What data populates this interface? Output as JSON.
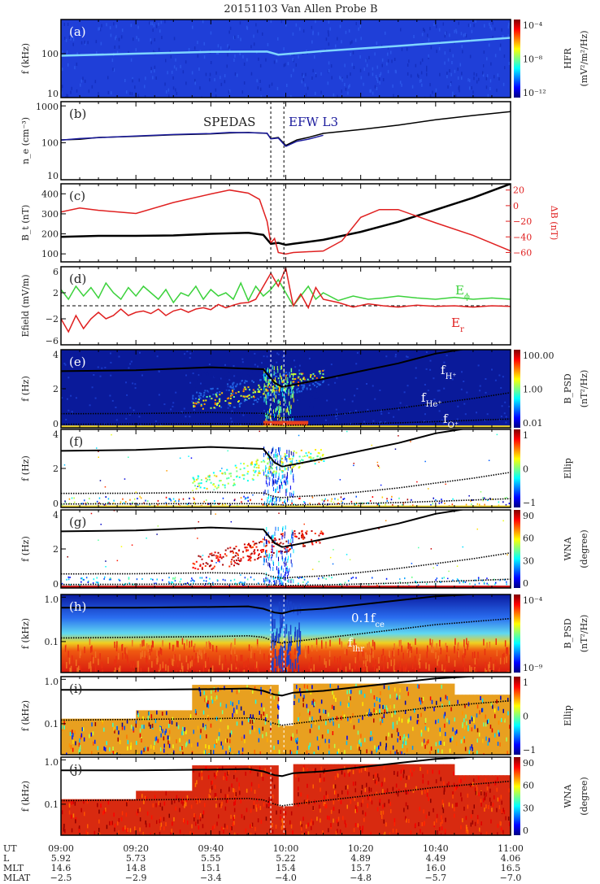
{
  "title": "20151103   Van Allen Probe B",
  "colors": {
    "black": "#000000",
    "blue": "#1a1a9c",
    "red": "#e02020",
    "green": "#3cd23c"
  },
  "chart_data": {
    "type": "multi-panel",
    "x_range_min_from_0900": [
      0,
      120
    ],
    "dashed_times_min": [
      56,
      59.5
    ],
    "x_axis": {
      "rows": [
        {
          "label": "UT",
          "values": [
            "09:00",
            "09:20",
            "09:40",
            "10:00",
            "10:20",
            "10:40",
            "11:00"
          ]
        },
        {
          "label": "L",
          "values": [
            "5.92",
            "5.73",
            "5.55",
            "5.22",
            "4.89",
            "4.49",
            "4.06"
          ]
        },
        {
          "label": "MLT",
          "values": [
            "14.6",
            "14.8",
            "15.1",
            "15.4",
            "15.7",
            "16.0",
            "16.5"
          ]
        },
        {
          "label": "MLAT",
          "values": [
            "−2.5",
            "−2.9",
            "−3.4",
            "−4.0",
            "−4.8",
            "−5.7",
            "−7.0"
          ]
        }
      ]
    },
    "panels": [
      {
        "id": "a",
        "letter": "(a)",
        "type": "spectrogram",
        "ylabel": "f (kHz)",
        "yscale": "log",
        "ylim": [
          10,
          600
        ],
        "yticks": [
          "10",
          "100"
        ],
        "ytick_values": [
          10,
          100
        ],
        "colorbar": {
          "label": "HFR",
          "unit": "(mV²/m²/Hz)",
          "ticks": [
            "10⁻⁴",
            "10⁻⁸",
            "10⁻¹²"
          ],
          "scale": "jet"
        },
        "lines": [
          {
            "name": "upper-hybrid",
            "color": "#7fd6ff",
            "t": [
              0,
              20,
              40,
              55,
              58,
              60,
              70,
              90,
              120
            ],
            "v": [
              90,
              100,
              110,
              112,
              95,
              98,
              115,
              150,
              230
            ]
          }
        ]
      },
      {
        "id": "b",
        "letter": "(b)",
        "type": "line",
        "ylabel": "n_e (cm⁻³)",
        "yscale": "log",
        "ylim": [
          10,
          1300
        ],
        "yticks": [
          "10",
          "100",
          "1000"
        ],
        "ytick_values": [
          10,
          100,
          1000
        ],
        "annotations": [
          {
            "text": "SPEDAS",
            "color": "#222222"
          },
          {
            "text": "EFW  L3",
            "color": "#1a1a9c"
          }
        ],
        "series": [
          {
            "name": "SPEDAS",
            "color": "#000000",
            "t": [
              0,
              5,
              10,
              20,
              30,
              40,
              45,
              50,
              55,
              56,
              58,
              60,
              63,
              66,
              70,
              80,
              90,
              100,
              110,
              120
            ],
            "v": [
              120,
              125,
              140,
              150,
              165,
              175,
              185,
              190,
              180,
              130,
              140,
              85,
              120,
              140,
              180,
              230,
              300,
              420,
              550,
              700
            ]
          },
          {
            "name": "EFW L3",
            "color": "#1a1a9c",
            "t": [
              0,
              5,
              10,
              20,
              30,
              40,
              45,
              50,
              55,
              56,
              58,
              60,
              63,
              66,
              70
            ],
            "v": [
              118,
              130,
              138,
              152,
              168,
              178,
              190,
              188,
              182,
              128,
              135,
              80,
              110,
              125,
              160
            ]
          }
        ]
      },
      {
        "id": "c",
        "letter": "(c)",
        "type": "line",
        "ylabel": "B_t (nT)",
        "yscale": "linear",
        "ylim": [
          60,
          450
        ],
        "yticks": [
          "100",
          "200",
          "300",
          "400"
        ],
        "ytick_values": [
          100,
          200,
          300,
          400
        ],
        "right_axis": {
          "label": "ΔB (nT)",
          "ylim": [
            -72,
            28
          ],
          "yticks": [
            "20",
            "0",
            "−20",
            "−40",
            "−60"
          ],
          "ytick_values": [
            20,
            0,
            -20,
            -40,
            -60
          ],
          "color": "#e02020"
        },
        "series": [
          {
            "name": "Bt",
            "color": "#000000",
            "axis": "left",
            "t": [
              0,
              10,
              20,
              30,
              40,
              50,
              54,
              56,
              58,
              60,
              62,
              70,
              80,
              90,
              100,
              110,
              120
            ],
            "v": [
              185,
              190,
              190,
              192,
              200,
              205,
              195,
              150,
              155,
              145,
              150,
              170,
              210,
              260,
              320,
              380,
              450
            ]
          },
          {
            "name": "dB",
            "color": "#e02020",
            "axis": "right",
            "t": [
              0,
              5,
              10,
              20,
              30,
              40,
              45,
              50,
              53,
              55,
              56,
              57,
              58,
              60,
              62,
              70,
              75,
              80,
              85,
              90,
              100,
              110,
              120
            ],
            "v": [
              -8,
              -3,
              -6,
              -10,
              4,
              15,
              20,
              16,
              8,
              -20,
              -48,
              -42,
              -60,
              -62,
              -60,
              -58,
              -45,
              -15,
              -5,
              -5,
              -22,
              -38,
              -58
            ]
          }
        ]
      },
      {
        "id": "d",
        "letter": "(d)",
        "type": "line",
        "ylabel": "Efield (mV/m)",
        "yscale": "linear",
        "ylim": [
          -6,
          6
        ],
        "yticks": [
          "6",
          "2",
          "−2",
          "−6"
        ],
        "ytick_values": [
          6,
          2,
          -2,
          -6
        ],
        "hline": 0,
        "annotations": [
          {
            "text": "E",
            "sub": "ϕ",
            "color": "#3cd23c"
          },
          {
            "text": "E",
            "sub": "r",
            "color": "#e02020"
          }
        ],
        "series": [
          {
            "name": "E_phi",
            "color": "#3cd23c",
            "t": [
              0,
              2,
              4,
              6,
              8,
              10,
              12,
              14,
              16,
              18,
              20,
              22,
              24,
              26,
              28,
              30,
              32,
              34,
              36,
              38,
              40,
              42,
              44,
              46,
              48,
              50,
              52,
              54,
              56,
              58,
              60,
              62,
              64,
              66,
              68,
              70,
              74,
              78,
              82,
              86,
              90,
              95,
              100,
              105,
              110,
              115,
              120
            ],
            "v": [
              2.5,
              1,
              3,
              1.5,
              2.8,
              1.2,
              3.5,
              2,
              1,
              2.8,
              1.5,
              3,
              2,
              1,
              2.5,
              0.5,
              2,
              1.5,
              3,
              1,
              2.5,
              1.5,
              2,
              1,
              3.5,
              0.8,
              3,
              1.5,
              2.5,
              4,
              2,
              0,
              1.5,
              3,
              1,
              2,
              0.8,
              1.5,
              1,
              1.2,
              1.5,
              1.2,
              1,
              1.3,
              1,
              1.2,
              1
            ]
          },
          {
            "name": "E_r",
            "color": "#e02020",
            "t": [
              0,
              2,
              4,
              6,
              8,
              10,
              12,
              14,
              16,
              18,
              20,
              22,
              24,
              26,
              28,
              30,
              32,
              34,
              36,
              38,
              40,
              42,
              44,
              46,
              48,
              50,
              52,
              54,
              56,
              58,
              60,
              62,
              64,
              66,
              68,
              70,
              74,
              78,
              82,
              86,
              90,
              95,
              100,
              105,
              110,
              115,
              120
            ],
            "v": [
              -2,
              -4,
              -1.5,
              -3.5,
              -2,
              -1,
              -2,
              -1.5,
              -0.5,
              -1.5,
              -1,
              -0.8,
              -1.2,
              -0.5,
              -1.5,
              -0.8,
              -0.5,
              -1,
              -0.5,
              -0.3,
              -0.6,
              0.2,
              -0.3,
              0.1,
              0.4,
              0.5,
              1,
              3,
              5,
              3,
              5.8,
              0,
              1.8,
              -0.3,
              2.8,
              1,
              0.5,
              -0.2,
              0.3,
              0,
              -0.2,
              0.1,
              -0.1,
              0,
              -0.2,
              0,
              -0.1
            ]
          }
        ]
      },
      {
        "id": "e",
        "letter": "(e)",
        "type": "spectrogram",
        "ylabel": "f (Hz)",
        "yscale": "linear",
        "ylim": [
          0,
          4
        ],
        "yticks": [
          "0",
          "2",
          "4"
        ],
        "ytick_values": [
          0,
          2,
          4
        ],
        "colorbar": {
          "label": "B_PSD",
          "unit": "(nT²/Hz)",
          "ticks": [
            "100.00",
            "1.00",
            "0.01"
          ],
          "scale": "jet"
        },
        "annotations": [
          {
            "text": "f",
            "sub": "H⁺",
            "color": "#ffffff"
          },
          {
            "text": "f",
            "sub": "He⁺",
            "color": "#ffffff"
          },
          {
            "text": "f",
            "sub": "O⁺",
            "color": "#ffffff"
          }
        ]
      },
      {
        "id": "f",
        "letter": "(f)",
        "type": "spectrogram",
        "ylabel": "f (Hz)",
        "yscale": "linear",
        "ylim": [
          0,
          4
        ],
        "yticks": [
          "0",
          "2",
          "4"
        ],
        "ytick_values": [
          0,
          2,
          4
        ],
        "colorbar": {
          "label": "Ellip",
          "unit": "",
          "ticks": [
            "1",
            "0",
            "−1"
          ],
          "scale": "jet"
        }
      },
      {
        "id": "g",
        "letter": "(g)",
        "type": "spectrogram",
        "ylabel": "f (Hz)",
        "yscale": "linear",
        "ylim": [
          0,
          4
        ],
        "yticks": [
          "0",
          "2",
          "4"
        ],
        "ytick_values": [
          0,
          2,
          4
        ],
        "colorbar": {
          "label": "WNA",
          "unit": "(degree)",
          "ticks": [
            "90",
            "60",
            "30",
            "0"
          ],
          "scale": "jet"
        }
      },
      {
        "id": "h",
        "letter": "(h)",
        "type": "spectrogram",
        "ylabel": "f (kHz)",
        "yscale": "log",
        "ylim": [
          0.02,
          1.15
        ],
        "yticks": [
          "0.1",
          "1.0"
        ],
        "ytick_values": [
          0.1,
          1.0
        ],
        "colorbar": {
          "label": "B_PSD",
          "unit": "(nT²/Hz)",
          "ticks": [
            "10⁻⁴",
            "10⁻⁹"
          ],
          "scale": "jet"
        },
        "annotations": [
          {
            "text": "0.1f",
            "sub": "ce",
            "color": "#ffffff"
          },
          {
            "text": "f",
            "sub": "lhr",
            "color": "#ffffff"
          }
        ]
      },
      {
        "id": "i",
        "letter": "(i)",
        "type": "spectrogram",
        "ylabel": "f (kHz)",
        "yscale": "log",
        "ylim": [
          0.02,
          1.15
        ],
        "yticks": [
          "0.1",
          "1.0"
        ],
        "ytick_values": [
          0.1,
          1.0
        ],
        "colorbar": {
          "label": "Ellip",
          "unit": "",
          "ticks": [
            "1",
            "0",
            "−1"
          ],
          "scale": "jet"
        }
      },
      {
        "id": "j",
        "letter": "(j)",
        "type": "spectrogram",
        "ylabel": "f (kHz)",
        "yscale": "log",
        "ylim": [
          0.02,
          1.15
        ],
        "yticks": [
          "0.1",
          "1.0"
        ],
        "ytick_values": [
          0.1,
          1.0
        ],
        "colorbar": {
          "label": "WNA",
          "unit": "(degree)",
          "ticks": [
            "90",
            "60",
            "30",
            "0"
          ],
          "scale": "jet"
        }
      }
    ],
    "overlay_lines": {
      "f_H+": {
        "t": [
          0,
          20,
          40,
          54,
          57,
          59,
          62,
          70,
          80,
          90,
          100,
          110
        ],
        "v": [
          2.9,
          2.95,
          3.1,
          3.0,
          2.3,
          2.1,
          2.2,
          2.5,
          2.9,
          3.3,
          3.8,
          4.1
        ],
        "style": "solid"
      },
      "f_He+": {
        "t": [
          0,
          20,
          40,
          54,
          57,
          59,
          62,
          70,
          80,
          90,
          100,
          110,
          120
        ],
        "v": [
          0.72,
          0.73,
          0.78,
          0.74,
          0.55,
          0.5,
          0.55,
          0.62,
          0.8,
          1.0,
          1.25,
          1.5,
          1.8
        ],
        "style": "dotted"
      },
      "f_O+": {
        "t": [
          0,
          40,
          54,
          58,
          60,
          70,
          90,
          120
        ],
        "v": [
          0.18,
          0.2,
          0.19,
          0.14,
          0.13,
          0.16,
          0.25,
          0.45
        ],
        "style": "dotted"
      },
      "0.1f_ce": {
        "t": [
          0,
          20,
          40,
          50,
          54,
          57,
          59,
          62,
          70,
          80,
          90,
          100,
          120
        ],
        "v": [
          0.58,
          0.58,
          0.6,
          0.62,
          0.55,
          0.45,
          0.43,
          0.5,
          0.55,
          0.68,
          0.85,
          1.05,
          1.3
        ],
        "style": "solid"
      },
      "f_lhr": {
        "t": [
          0,
          20,
          40,
          50,
          54,
          57,
          59,
          62,
          70,
          80,
          90,
          100,
          120
        ],
        "v": [
          0.12,
          0.125,
          0.13,
          0.135,
          0.125,
          0.1,
          0.092,
          0.1,
          0.12,
          0.15,
          0.19,
          0.24,
          0.33
        ],
        "style": "dotted"
      }
    }
  }
}
